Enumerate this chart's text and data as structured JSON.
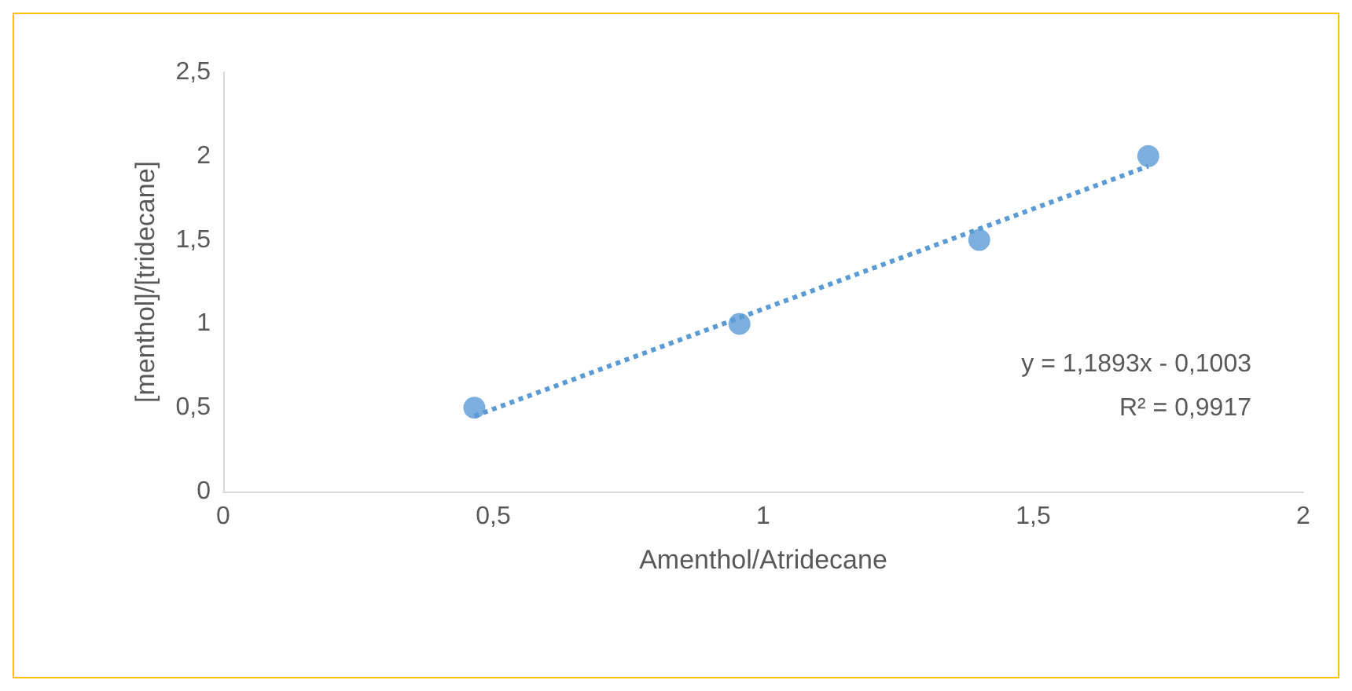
{
  "chart_data": {
    "type": "scatter",
    "xlabel": "Amenthol/Atridecane",
    "ylabel": "[menthol]/[tridecane]",
    "xlim": [
      0,
      2
    ],
    "xticks": [
      0,
      {
        "value": 0.5,
        "label": "0,5"
      },
      1,
      {
        "value": 1.5,
        "label": "1,5"
      },
      2
    ],
    "ylim": [
      0,
      2.5
    ],
    "yticks": [
      0,
      {
        "value": 0.5,
        "label": "0,5"
      },
      1,
      {
        "value": 1.5,
        "label": "1,5"
      },
      2,
      {
        "value": 2.5,
        "label": "2,5"
      }
    ],
    "grid": false,
    "series": [
      {
        "color": "#5b9bd5",
        "marker": "circle",
        "x": [
          0.465,
          0.956,
          1.4,
          1.713
        ],
        "values": [
          0.5,
          1,
          1.5,
          2
        ]
      },
      {
        "type": "line",
        "color": "#5b9bd5",
        "marker": "none",
        "line_style": "dotted",
        "x": [
          0.465,
          1.713
        ],
        "values": [
          0.45,
          1.94
        ]
      }
    ],
    "annotations": [
      "y = 1,1893x - 0,1003",
      "R² = 0,9917"
    ]
  }
}
